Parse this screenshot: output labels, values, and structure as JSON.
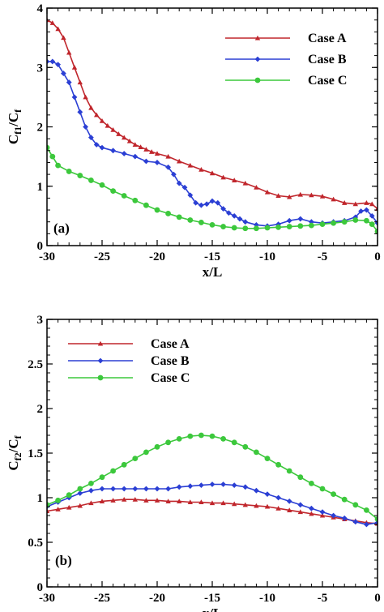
{
  "chart_data": [
    {
      "type": "line",
      "panel_label": "(a)",
      "xlabel": "x/L",
      "ylabel": {
        "base": "C",
        "sub": "f1",
        "den": "C",
        "den_sub": "f"
      },
      "xlim": [
        -30,
        0
      ],
      "ylim": [
        0,
        4
      ],
      "xticks": [
        -30,
        -25,
        -20,
        -15,
        -10,
        -5,
        0
      ],
      "yticks": [
        0,
        1,
        2,
        3,
        4
      ],
      "xtick_labels": [
        "-30",
        "-25",
        "-20",
        "-15",
        "-10",
        "-5",
        "0"
      ],
      "ytick_labels": [
        "0",
        "1",
        "2",
        "3",
        "4"
      ],
      "legend_position": "top-right",
      "series": [
        {
          "name": "Case A",
          "color": "#c0262c",
          "marker": "triangle",
          "x": [
            -30.0,
            -29.5,
            -29.0,
            -28.5,
            -28.0,
            -27.5,
            -27.0,
            -26.5,
            -26.0,
            -25.5,
            -25.0,
            -24.5,
            -24.0,
            -23.5,
            -23.0,
            -22.5,
            -22.0,
            -21.5,
            -21.0,
            -20.5,
            -20.0,
            -19.0,
            -18.0,
            -17.0,
            -16.0,
            -15.0,
            -14.0,
            -13.0,
            -12.0,
            -11.0,
            -10.0,
            -9.0,
            -8.0,
            -7.0,
            -6.0,
            -5.0,
            -4.0,
            -3.0,
            -2.0,
            -1.0,
            -0.5,
            0.0
          ],
          "y": [
            3.8,
            3.75,
            3.65,
            3.5,
            3.25,
            3.0,
            2.75,
            2.5,
            2.32,
            2.2,
            2.1,
            2.02,
            1.95,
            1.88,
            1.82,
            1.76,
            1.7,
            1.66,
            1.62,
            1.58,
            1.55,
            1.5,
            1.42,
            1.35,
            1.28,
            1.22,
            1.15,
            1.1,
            1.05,
            0.98,
            0.9,
            0.84,
            0.82,
            0.86,
            0.85,
            0.83,
            0.78,
            0.72,
            0.7,
            0.72,
            0.7,
            0.62
          ]
        },
        {
          "name": "Case B",
          "color": "#2b3fd4",
          "marker": "diamond",
          "x": [
            -30.0,
            -29.5,
            -29.0,
            -28.5,
            -28.0,
            -27.5,
            -27.0,
            -26.5,
            -26.0,
            -25.5,
            -25.0,
            -24.0,
            -23.0,
            -22.0,
            -21.0,
            -20.0,
            -19.0,
            -18.5,
            -18.0,
            -17.5,
            -17.0,
            -16.5,
            -16.0,
            -15.5,
            -15.0,
            -14.5,
            -14.0,
            -13.5,
            -13.0,
            -12.5,
            -12.0,
            -11.0,
            -10.0,
            -9.0,
            -8.0,
            -7.0,
            -6.0,
            -5.0,
            -4.0,
            -3.0,
            -2.0,
            -1.5,
            -1.0,
            -0.5,
            0.0
          ],
          "y": [
            3.1,
            3.1,
            3.05,
            2.9,
            2.75,
            2.5,
            2.25,
            2.0,
            1.82,
            1.7,
            1.65,
            1.6,
            1.55,
            1.5,
            1.42,
            1.4,
            1.32,
            1.2,
            1.05,
            0.98,
            0.85,
            0.72,
            0.68,
            0.7,
            0.75,
            0.72,
            0.62,
            0.55,
            0.5,
            0.45,
            0.4,
            0.35,
            0.33,
            0.36,
            0.42,
            0.45,
            0.4,
            0.38,
            0.4,
            0.42,
            0.48,
            0.58,
            0.6,
            0.5,
            0.38
          ]
        },
        {
          "name": "Case C",
          "color": "#3cc83c",
          "marker": "circle",
          "x": [
            -30.0,
            -29.5,
            -29.0,
            -28.0,
            -27.0,
            -26.0,
            -25.0,
            -24.0,
            -23.0,
            -22.0,
            -21.0,
            -20.0,
            -19.0,
            -18.0,
            -17.0,
            -16.0,
            -15.0,
            -14.0,
            -13.0,
            -12.0,
            -11.0,
            -10.0,
            -9.0,
            -8.0,
            -7.0,
            -6.0,
            -5.0,
            -4.0,
            -3.0,
            -2.0,
            -1.0,
            -0.5,
            0.0
          ],
          "y": [
            1.65,
            1.5,
            1.35,
            1.25,
            1.18,
            1.1,
            1.02,
            0.92,
            0.84,
            0.76,
            0.68,
            0.6,
            0.54,
            0.48,
            0.43,
            0.39,
            0.35,
            0.32,
            0.3,
            0.29,
            0.29,
            0.3,
            0.31,
            0.32,
            0.33,
            0.34,
            0.36,
            0.38,
            0.4,
            0.43,
            0.42,
            0.36,
            0.24
          ]
        }
      ]
    },
    {
      "type": "line",
      "panel_label": "(b)",
      "xlabel": "x/L",
      "ylabel": {
        "base": "C",
        "sub": "f2",
        "den": "C",
        "den_sub": "f"
      },
      "xlim": [
        -30,
        0
      ],
      "ylim": [
        0,
        3
      ],
      "xticks": [
        -30,
        -25,
        -20,
        -15,
        -10,
        -5,
        0
      ],
      "yticks": [
        0,
        0.5,
        1,
        1.5,
        2,
        2.5,
        3
      ],
      "xtick_labels": [
        "-30",
        "-25",
        "-20",
        "-15",
        "-10",
        "-5",
        "0"
      ],
      "ytick_labels": [
        "0",
        "0.5",
        "1",
        "1.5",
        "2",
        "2.5",
        "3"
      ],
      "legend_position": "top-left",
      "series": [
        {
          "name": "Case A",
          "color": "#c0262c",
          "marker": "triangle",
          "x": [
            -30,
            -29,
            -28,
            -27,
            -26,
            -25,
            -24,
            -23,
            -22,
            -21,
            -20,
            -19,
            -18,
            -17,
            -16,
            -15,
            -14,
            -13,
            -12,
            -11,
            -10,
            -9,
            -8,
            -7,
            -6,
            -5,
            -4,
            -3,
            -2,
            -1,
            0
          ],
          "y": [
            0.85,
            0.87,
            0.89,
            0.91,
            0.94,
            0.96,
            0.97,
            0.98,
            0.98,
            0.97,
            0.97,
            0.96,
            0.96,
            0.95,
            0.95,
            0.94,
            0.94,
            0.93,
            0.92,
            0.91,
            0.9,
            0.88,
            0.86,
            0.84,
            0.82,
            0.8,
            0.78,
            0.76,
            0.74,
            0.72,
            0.71
          ]
        },
        {
          "name": "Case B",
          "color": "#2b3fd4",
          "marker": "diamond",
          "x": [
            -30,
            -29,
            -28,
            -27,
            -26,
            -25,
            -24,
            -23,
            -22,
            -21,
            -20,
            -19,
            -18,
            -17,
            -16,
            -15,
            -14,
            -13,
            -12,
            -11,
            -10,
            -9,
            -8,
            -7,
            -6,
            -5,
            -4,
            -3,
            -2,
            -1,
            0
          ],
          "y": [
            0.9,
            0.95,
            1.0,
            1.05,
            1.08,
            1.1,
            1.1,
            1.1,
            1.1,
            1.1,
            1.1,
            1.1,
            1.12,
            1.13,
            1.14,
            1.15,
            1.15,
            1.14,
            1.12,
            1.08,
            1.04,
            1.0,
            0.96,
            0.92,
            0.88,
            0.84,
            0.8,
            0.77,
            0.73,
            0.7,
            0.72
          ]
        },
        {
          "name": "Case C",
          "color": "#3cc83c",
          "marker": "circle",
          "x": [
            -30,
            -29,
            -28,
            -27,
            -26,
            -25,
            -24,
            -23,
            -22,
            -21,
            -20,
            -19,
            -18,
            -17,
            -16,
            -15,
            -14,
            -13,
            -12,
            -11,
            -10,
            -9,
            -8,
            -7,
            -6,
            -5,
            -4,
            -3,
            -2,
            -1,
            0
          ],
          "y": [
            0.92,
            0.97,
            1.03,
            1.1,
            1.16,
            1.23,
            1.3,
            1.37,
            1.44,
            1.51,
            1.57,
            1.62,
            1.66,
            1.69,
            1.7,
            1.69,
            1.66,
            1.62,
            1.57,
            1.51,
            1.44,
            1.37,
            1.3,
            1.23,
            1.16,
            1.1,
            1.04,
            0.98,
            0.92,
            0.86,
            0.76
          ]
        }
      ]
    }
  ]
}
